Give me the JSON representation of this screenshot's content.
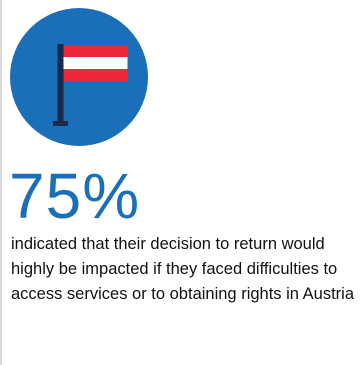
{
  "stat": {
    "value": "75%",
    "description": "indicated that their decision to return would highly be impacted if they faced difficulties to access services or to obtaining rights in Austria"
  },
  "badge": {
    "icon": "austria-flag-icon",
    "circle_color": "#1a6fb8",
    "flag_colors": [
      "#ed2939",
      "#ffffff",
      "#ed2939"
    ],
    "pole_color": "#1b2a4a"
  },
  "colors": {
    "accent": "#1a6fb8",
    "text": "#111111"
  }
}
